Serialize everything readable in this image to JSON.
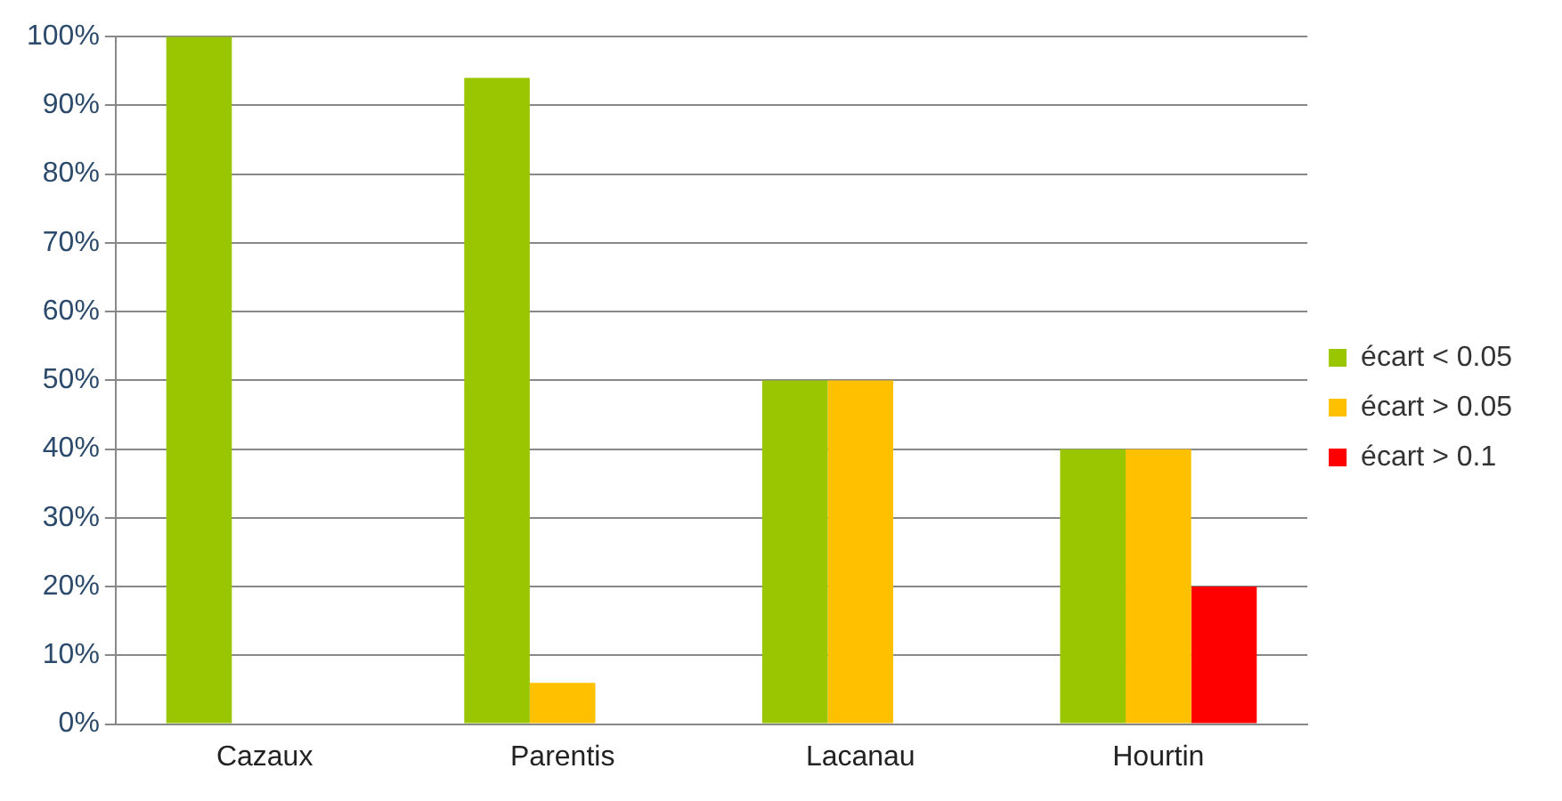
{
  "chart_data": {
    "type": "bar",
    "categories": [
      "Cazaux",
      "Parentis",
      "Lacanau",
      "Hourtin"
    ],
    "series": [
      {
        "name": "écart < 0.05",
        "color": "#99c600",
        "values": [
          100,
          94,
          50,
          40
        ]
      },
      {
        "name": "écart > 0.05",
        "color": "#ffc000",
        "values": [
          0,
          6,
          50,
          40
        ]
      },
      {
        "name": "écart > 0.1",
        "color": "#ff0000",
        "values": [
          0,
          0,
          0,
          20
        ]
      }
    ],
    "ylim": [
      0,
      100
    ],
    "yticks": [
      {
        "value": 0,
        "label": "0%"
      },
      {
        "value": 10,
        "label": "10%"
      },
      {
        "value": 20,
        "label": "20%"
      },
      {
        "value": 30,
        "label": "30%"
      },
      {
        "value": 40,
        "label": "40%"
      },
      {
        "value": 50,
        "label": "50%"
      },
      {
        "value": 60,
        "label": "60%"
      },
      {
        "value": 70,
        "label": "70%"
      },
      {
        "value": 80,
        "label": "80%"
      },
      {
        "value": 90,
        "label": "90%"
      },
      {
        "value": 100,
        "label": "100%"
      }
    ],
    "grid": "y",
    "legend": "right"
  }
}
